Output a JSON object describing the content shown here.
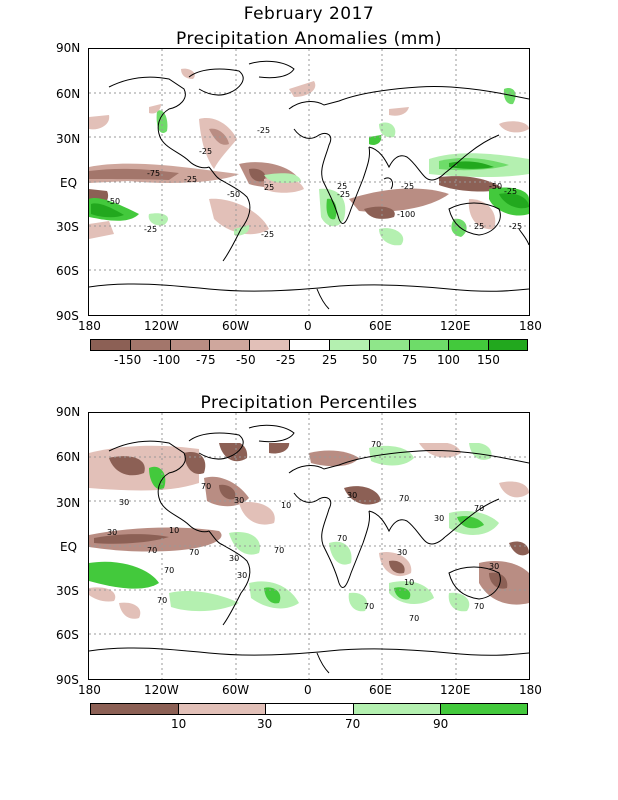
{
  "header": {
    "title": "February 2017"
  },
  "anomaly_panel": {
    "title": "Precipitation Anomalies (mm)",
    "lat_labels": [
      "90N",
      "60N",
      "30N",
      "EQ",
      "30S",
      "60S",
      "90S"
    ],
    "lon_labels": [
      "180",
      "120W",
      "60W",
      "0",
      "60E",
      "120E",
      "180"
    ],
    "legend": {
      "labels": [
        "-150",
        "-100",
        "-75",
        "-50",
        "-25",
        "25",
        "50",
        "75",
        "100",
        "150"
      ],
      "colors": [
        "#8c6055",
        "#a3766b",
        "#b98d83",
        "#cfa79d",
        "#e2c0b8",
        "#ffffff",
        "#b4f0b0",
        "#8fe68a",
        "#6edc69",
        "#43c93c",
        "#22a81e"
      ]
    },
    "contour_labels": [
      "-25",
      "-25",
      "-75",
      "-25",
      "-50",
      "-50",
      "-25",
      "-25",
      "-25",
      "-100",
      "-25",
      "-50",
      "-25",
      "-25",
      "25",
      "25",
      "25"
    ]
  },
  "percentile_panel": {
    "title": "Precipitation Percentiles",
    "lat_labels": [
      "90N",
      "60N",
      "30N",
      "EQ",
      "30S",
      "60S",
      "90S"
    ],
    "lon_labels": [
      "180",
      "120W",
      "60W",
      "0",
      "60E",
      "120E",
      "180"
    ],
    "legend": {
      "labels": [
        "10",
        "30",
        "70",
        "90"
      ],
      "colors": [
        "#8c6055",
        "#e2c0b8",
        "#ffffff",
        "#b4f0b0",
        "#43c93c"
      ]
    },
    "contour_labels": [
      "70",
      "30",
      "70",
      "30",
      "70",
      "30",
      "10",
      "70",
      "30",
      "10",
      "70",
      "70",
      "30",
      "70",
      "30",
      "70",
      "70",
      "10",
      "30",
      "70",
      "70",
      "70",
      "30",
      "70",
      "30"
    ]
  },
  "colors": {
    "dry_strong": "#8c6055",
    "dry": "#b98d83",
    "dry_light": "#e2c0b8",
    "wet_light": "#b4f0b0",
    "wet": "#6edc69",
    "wet_strong": "#22a81e",
    "grid": "#999999",
    "coast": "#000000"
  }
}
